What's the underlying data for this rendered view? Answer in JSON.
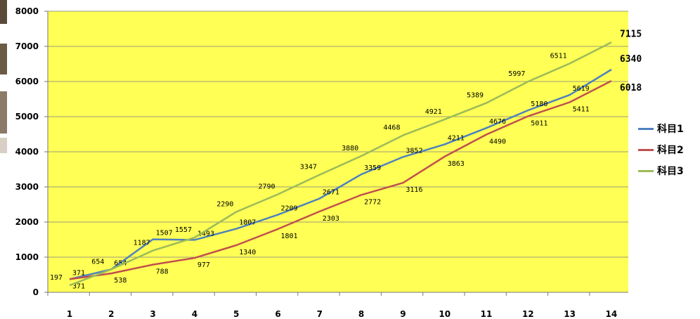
{
  "chart_data": {
    "type": "line",
    "categories": [
      "1",
      "2",
      "3",
      "4",
      "5",
      "6",
      "7",
      "8",
      "9",
      "10",
      "11",
      "12",
      "13",
      "14"
    ],
    "series": [
      {
        "name": "科目1",
        "color": "#4f81bd",
        "values": [
          371,
          654,
          1507,
          1493,
          1807,
          2209,
          2671,
          3359,
          3852,
          4211,
          4676,
          5180,
          5619,
          6340
        ],
        "labels": [
          "371",
          "654",
          "1507",
          "1493",
          "1807",
          "2209",
          "2671",
          "3359",
          "3852",
          "4211",
          "4676",
          "5180",
          "5619",
          "6340"
        ]
      },
      {
        "name": "科目2",
        "color": "#c0504d",
        "values": [
          371,
          538,
          788,
          977,
          1340,
          1801,
          2303,
          2772,
          3116,
          3863,
          4490,
          5011,
          5411,
          6018
        ],
        "labels": [
          "371",
          "538",
          "788",
          "977",
          "1340",
          "1801",
          "2303",
          "2772",
          "3116",
          "3863",
          "4490",
          "5011",
          "5411",
          "6018"
        ]
      },
      {
        "name": "科目3",
        "color": "#9bbb59",
        "values": [
          197,
          654,
          1187,
          1557,
          2290,
          2790,
          3347,
          3880,
          4468,
          4921,
          5389,
          5997,
          6511,
          7115
        ],
        "labels": [
          "197",
          "654",
          "1187",
          "1557",
          "2290",
          "2790",
          "3347",
          "3880",
          "4468",
          "4921",
          "5389",
          "5997",
          "6511",
          "7115"
        ]
      }
    ],
    "y_ticks": [
      "0",
      "1000",
      "2000",
      "3000",
      "4000",
      "5000",
      "6000",
      "7000",
      "8000"
    ],
    "ylim": [
      0,
      8000
    ],
    "grid": true,
    "plot_background": "#ffff55",
    "legend_position": "right"
  }
}
